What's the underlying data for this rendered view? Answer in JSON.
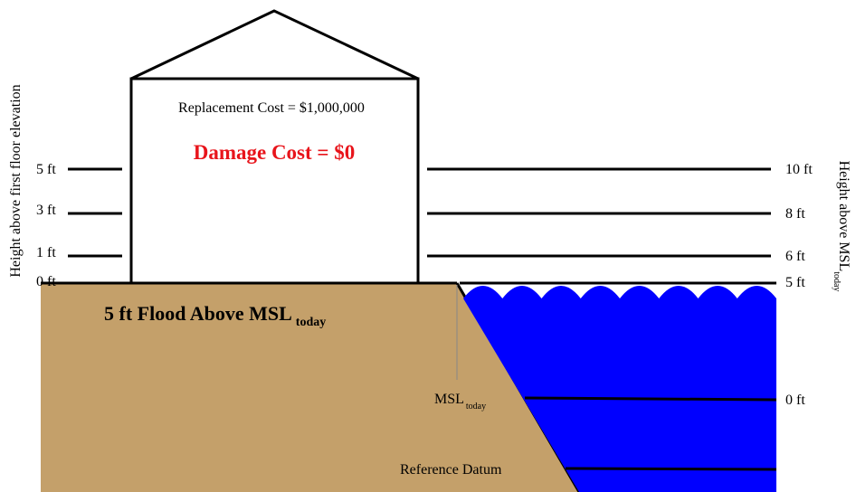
{
  "house": {
    "replacement_cost": "Replacement Cost = $1,000,000",
    "damage_cost": "Damage Cost = $0"
  },
  "left_axis": {
    "title": "Height above first floor elevation",
    "ticks": [
      "5 ft",
      "3 ft",
      "1 ft",
      "0 ft"
    ]
  },
  "right_axis": {
    "title": "Height above MSL",
    "title_subscript": "today",
    "ticks": [
      "10 ft",
      "8 ft",
      "6 ft",
      "5 ft",
      "0 ft"
    ]
  },
  "flood_label": {
    "text": "5 ft Flood Above MSL",
    "subscript": "today"
  },
  "msl_label": {
    "text": "MSL",
    "subscript": "today"
  },
  "reference_datum": "Reference Datum"
}
